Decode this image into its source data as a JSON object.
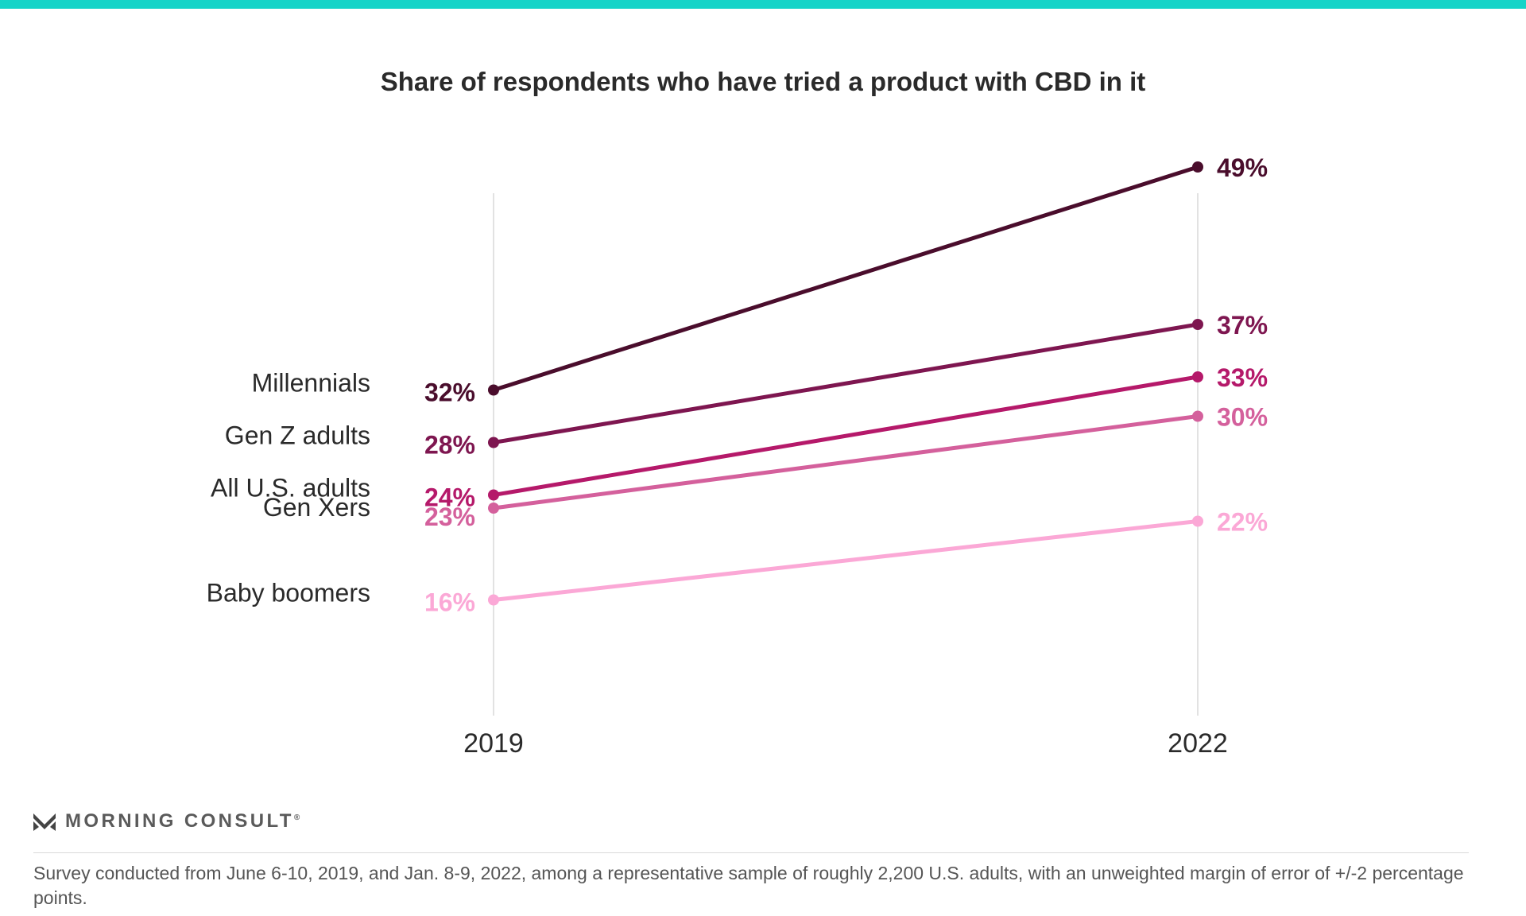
{
  "chart_data": {
    "type": "line",
    "title": "Share of respondents who have tried a product with CBD in it",
    "x": [
      "2019",
      "2022"
    ],
    "value_suffix": "%",
    "ylim": [
      0,
      55
    ],
    "grid": "vertical lines at each year",
    "series": [
      {
        "name": "Millennials",
        "values": [
          32,
          49
        ],
        "color": "#4a0d2c"
      },
      {
        "name": "Gen Z adults",
        "values": [
          28,
          37
        ],
        "color": "#7e1650"
      },
      {
        "name": "All U.S. adults",
        "values": [
          24,
          33
        ],
        "color": "#b5196a"
      },
      {
        "name": "Gen Xers",
        "values": [
          23,
          30
        ],
        "color": "#d4609c"
      },
      {
        "name": "Baby boomers",
        "values": [
          16,
          22
        ],
        "color": "#fba8d6"
      }
    ]
  },
  "colors": {
    "top_bar": "#16d4c8",
    "gridline": "#d9d9d9",
    "text": "#2a2a2a"
  },
  "brand": {
    "name": "MORNING CONSULT",
    "registered_mark": "®",
    "logo_icon": "morning-consult-m-icon"
  },
  "footnote": "Survey conducted from June 6-10, 2019, and Jan. 8-9, 2022, among a representative sample of roughly 2,200 U.S. adults, with an unweighted margin of error of +/-2 percentage points."
}
